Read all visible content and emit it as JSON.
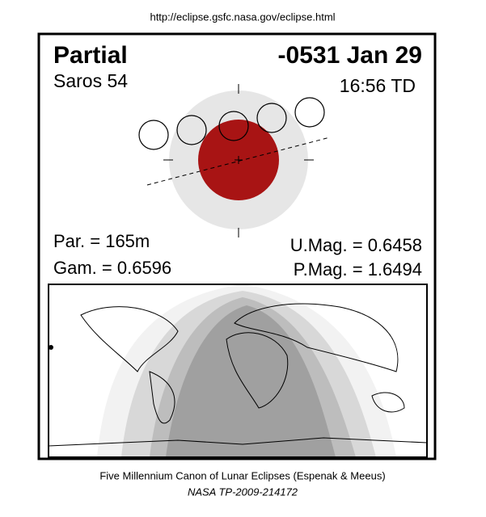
{
  "header": {
    "url": "http://eclipse.gsfc.nasa.gov/eclipse.html"
  },
  "eclipse": {
    "type": "Partial",
    "date": "-0531 Jan 29",
    "saros": "Saros  54",
    "time": "16:56 TD",
    "duration": "Par. = 165m",
    "gamma": "Gam. = 0.6596",
    "umbral_magnitude": "U.Mag. = 0.6458",
    "penumbral_magnitude": "P.Mag. = 1.6494"
  },
  "footer": {
    "title": "Five Millennium Canon of Lunar Eclipses (Espenak & Meeus)",
    "reference": "NASA TP-2009-214172"
  }
}
